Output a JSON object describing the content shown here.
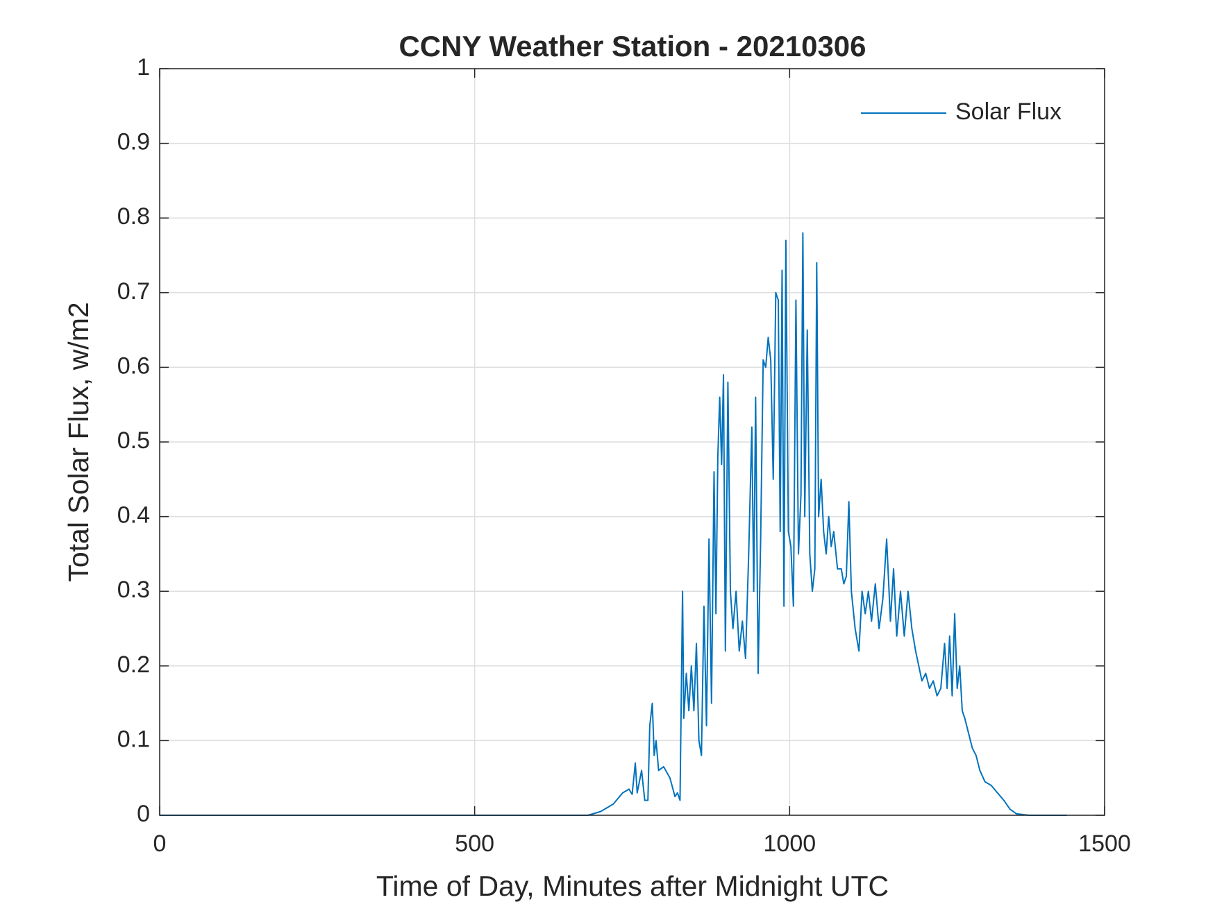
{
  "chart_data": {
    "type": "line",
    "title": "CCNY Weather Station - 20210306",
    "xlabel": "Time of Day, Minutes after Midnight UTC",
    "ylabel": "Total Solar Flux, w/m2",
    "x": [
      0,
      680,
      700,
      720,
      735,
      745,
      750,
      755,
      758,
      765,
      770,
      775,
      778,
      782,
      785,
      788,
      792,
      800,
      810,
      818,
      822,
      826,
      830,
      832,
      836,
      840,
      844,
      848,
      852,
      856,
      860,
      864,
      868,
      872,
      876,
      880,
      883,
      886,
      889,
      892,
      895,
      898,
      902,
      906,
      910,
      915,
      920,
      925,
      930,
      935,
      940,
      943,
      946,
      950,
      954,
      958,
      962,
      966,
      970,
      974,
      978,
      982,
      985,
      988,
      991,
      994,
      998,
      1002,
      1006,
      1010,
      1014,
      1018,
      1021,
      1024,
      1028,
      1032,
      1036,
      1040,
      1043,
      1046,
      1050,
      1054,
      1058,
      1062,
      1066,
      1070,
      1076,
      1082,
      1086,
      1090,
      1094,
      1098,
      1104,
      1110,
      1115,
      1120,
      1125,
      1130,
      1136,
      1142,
      1148,
      1154,
      1160,
      1165,
      1170,
      1176,
      1182,
      1188,
      1194,
      1200,
      1205,
      1210,
      1216,
      1222,
      1228,
      1234,
      1240,
      1246,
      1250,
      1254,
      1258,
      1262,
      1266,
      1270,
      1274,
      1278,
      1284,
      1290,
      1296,
      1302,
      1310,
      1320,
      1330,
      1340,
      1350,
      1360,
      1380,
      1440
    ],
    "series": [
      {
        "name": "Solar Flux",
        "color": "#0072bd",
        "values": [
          0,
          0,
          0.005,
          0.015,
          0.03,
          0.035,
          0.028,
          0.07,
          0.03,
          0.06,
          0.02,
          0.02,
          0.12,
          0.15,
          0.08,
          0.1,
          0.06,
          0.065,
          0.05,
          0.025,
          0.03,
          0.02,
          0.3,
          0.13,
          0.19,
          0.14,
          0.2,
          0.14,
          0.23,
          0.1,
          0.08,
          0.28,
          0.12,
          0.37,
          0.15,
          0.46,
          0.27,
          0.48,
          0.56,
          0.47,
          0.59,
          0.22,
          0.58,
          0.3,
          0.25,
          0.3,
          0.22,
          0.26,
          0.21,
          0.35,
          0.52,
          0.3,
          0.56,
          0.19,
          0.37,
          0.61,
          0.6,
          0.64,
          0.61,
          0.45,
          0.7,
          0.69,
          0.38,
          0.73,
          0.28,
          0.77,
          0.38,
          0.36,
          0.28,
          0.69,
          0.35,
          0.43,
          0.78,
          0.4,
          0.65,
          0.35,
          0.3,
          0.33,
          0.74,
          0.4,
          0.45,
          0.38,
          0.35,
          0.4,
          0.36,
          0.38,
          0.33,
          0.33,
          0.31,
          0.32,
          0.42,
          0.3,
          0.25,
          0.22,
          0.3,
          0.27,
          0.3,
          0.26,
          0.31,
          0.25,
          0.29,
          0.37,
          0.26,
          0.33,
          0.24,
          0.3,
          0.24,
          0.3,
          0.25,
          0.22,
          0.2,
          0.18,
          0.19,
          0.17,
          0.18,
          0.16,
          0.17,
          0.23,
          0.17,
          0.24,
          0.16,
          0.27,
          0.17,
          0.2,
          0.14,
          0.13,
          0.11,
          0.09,
          0.08,
          0.06,
          0.045,
          0.04,
          0.03,
          0.02,
          0.008,
          0.002,
          0,
          0
        ]
      }
    ],
    "xlim": [
      0,
      1500
    ],
    "xticks": [
      0,
      500,
      1000,
      1500
    ],
    "ylim": [
      0,
      1
    ],
    "yticks": [
      0,
      0.1,
      0.2,
      0.3,
      0.4,
      0.5,
      0.6,
      0.7,
      0.8,
      0.9,
      1
    ],
    "grid": true,
    "legend": "upper right"
  }
}
